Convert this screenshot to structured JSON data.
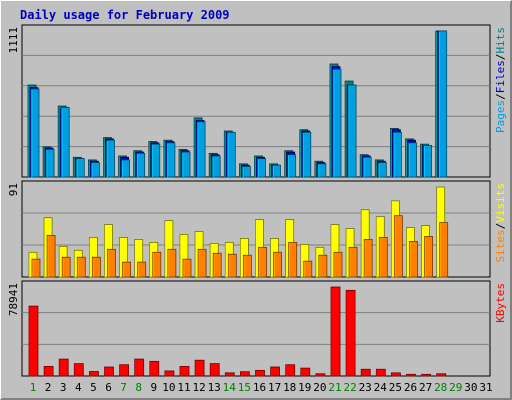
{
  "chart_data": {
    "type": "bar",
    "title": "Daily usage for February 2009",
    "days": [
      1,
      2,
      3,
      4,
      5,
      6,
      7,
      8,
      9,
      10,
      11,
      12,
      13,
      14,
      15,
      16,
      17,
      18,
      19,
      20,
      21,
      22,
      23,
      24,
      25,
      26,
      27,
      28,
      29,
      30,
      31
    ],
    "weekend_days": [
      1,
      7,
      8,
      14,
      15,
      21,
      22,
      28,
      29
    ],
    "panels": [
      {
        "ymax_label": "1111",
        "ymax": 1111,
        "legend": [
          {
            "text": "Pages",
            "color": "#00a0e0"
          },
          {
            "text": "/",
            "color": "#000000"
          },
          {
            "text": "Files",
            "color": "#0000c0"
          },
          {
            "text": "/",
            "color": "#000000"
          },
          {
            "text": "Hits",
            "color": "#008080"
          }
        ],
        "series": [
          {
            "name": "Hits",
            "color": "#008080",
            "values": [
              700,
              230,
              540,
              150,
              130,
              300,
              160,
              200,
              270,
              280,
              210,
              450,
              180,
              350,
              100,
              160,
              100,
              200,
              360,
              120,
              860,
              730,
              170,
              130,
              370,
              290,
              250,
              1111,
              0,
              0,
              0
            ]
          },
          {
            "name": "Files",
            "color": "#0000c0",
            "values": [
              680,
              220,
              520,
              140,
              120,
              290,
              150,
              190,
              260,
              270,
              200,
              430,
              170,
              340,
              90,
              150,
              90,
              190,
              350,
              110,
              840,
              700,
              160,
              120,
              360,
              280,
              240,
              1111,
              0,
              0,
              0
            ]
          },
          {
            "name": "Pages",
            "color": "#00a0e0",
            "values": [
              670,
              210,
              530,
              140,
              110,
              280,
              130,
              180,
              250,
              260,
              190,
              420,
              160,
              340,
              80,
              140,
              90,
              170,
              340,
              100,
              820,
              700,
              150,
              110,
              340,
              260,
              240,
              1111,
              0,
              0,
              0
            ]
          }
        ]
      },
      {
        "ymax_label": "91",
        "ymax": 91,
        "legend": [
          {
            "text": "Sites",
            "color": "#ff8000"
          },
          {
            "text": "/",
            "color": "#000000"
          },
          {
            "text": "Visits",
            "color": "#ffff00"
          }
        ],
        "series": [
          {
            "name": "Visits",
            "color": "#ffff00",
            "values": [
              25,
              60,
              31,
              27,
              40,
              53,
              40,
              38,
              35,
              57,
              43,
              46,
              34,
              35,
              39,
              58,
              39,
              58,
              33,
              30,
              53,
              49,
              68,
              61,
              77,
              50,
              52,
              91,
              0,
              0,
              0
            ]
          },
          {
            "name": "Sites",
            "color": "#ff8000",
            "values": [
              18,
              42,
              20,
              20,
              20,
              28,
              15,
              15,
              25,
              28,
              18,
              28,
              24,
              23,
              22,
              30,
              25,
              35,
              16,
              22,
              25,
              30,
              38,
              40,
              62,
              36,
              41,
              55,
              0,
              0,
              0
            ]
          }
        ]
      },
      {
        "ymax_label": "78941",
        "ymax": 78941,
        "legend": [
          {
            "text": "KBytes",
            "color": "#ff0000"
          }
        ],
        "series": [
          {
            "name": "KBytes",
            "color": "#ff0000",
            "values": [
              62000,
              8500,
              15000,
              11000,
              4000,
              8000,
              10000,
              15000,
              13000,
              4500,
              8500,
              14000,
              11000,
              2800,
              3800,
              5000,
              8000,
              10000,
              7000,
              2000,
              78941,
              76000,
              6000,
              6000,
              2800,
              1500,
              1500,
              2000,
              0,
              0,
              0
            ]
          }
        ]
      }
    ]
  }
}
